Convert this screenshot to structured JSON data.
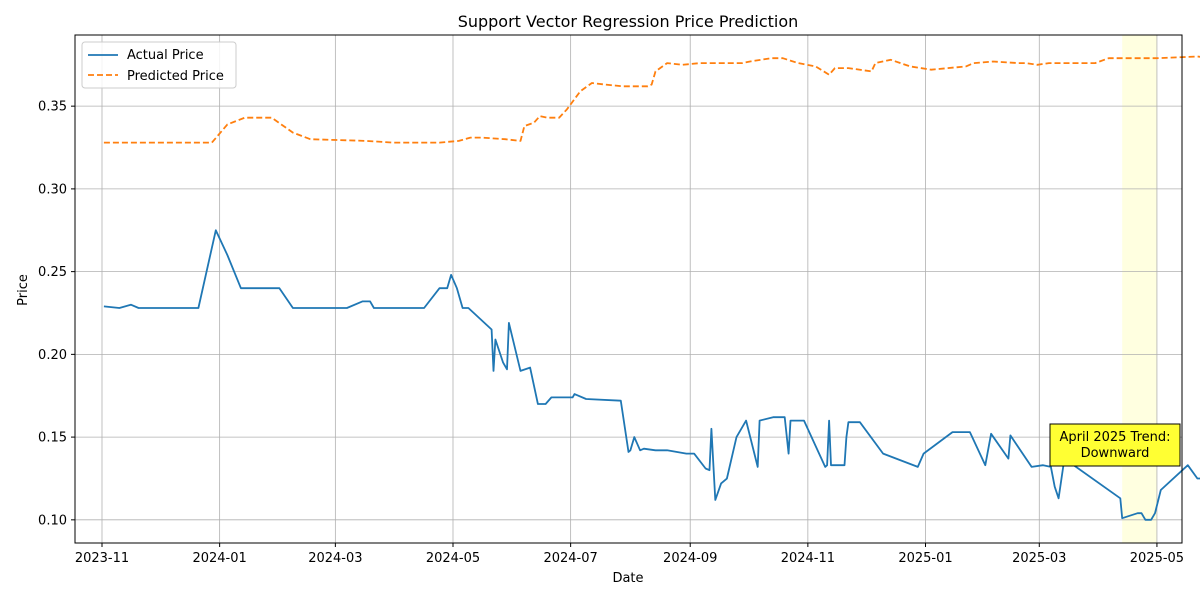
{
  "chart_data": {
    "type": "line",
    "title": "Support Vector Regression Price Prediction",
    "xlabel": "Date",
    "ylabel": "Price",
    "xlim": [
      "2023-10-18",
      "2025-05-14"
    ],
    "ylim": [
      0.086,
      0.393
    ],
    "grid": true,
    "legend_position": "top-left",
    "x_tick_labels": [
      "2023-11",
      "2024-01",
      "2024-03",
      "2024-05",
      "2024-07",
      "2024-09",
      "2024-11",
      "2025-01",
      "2025-03",
      "2025-05"
    ],
    "y_ticks": [
      0.1,
      0.15,
      0.2,
      0.25,
      0.3,
      0.35
    ],
    "y_tick_labels": [
      "0.10",
      "0.15",
      "0.20",
      "0.25",
      "0.30",
      "0.35"
    ],
    "highlight": {
      "start": "2025-04-13",
      "end": "2025-05-01",
      "color": "#ffffe0"
    },
    "annotation": {
      "lines": [
        "April 2025 Trend:",
        "Downward"
      ],
      "date": "2025-04-25",
      "price": 0.142,
      "box_color": "#ffff33"
    },
    "series": [
      {
        "name": "Actual Price",
        "color": "#1f77b4",
        "style": "solid",
        "points": [
          [
            "2023-11-02",
            0.229
          ],
          [
            "2023-11-10",
            0.228
          ],
          [
            "2023-11-16",
            0.23
          ],
          [
            "2023-11-20",
            0.228
          ],
          [
            "2023-12-21",
            0.228
          ],
          [
            "2023-12-30",
            0.275
          ],
          [
            "2024-01-05",
            0.26
          ],
          [
            "2024-01-12",
            0.24
          ],
          [
            "2024-02-01",
            0.24
          ],
          [
            "2024-02-08",
            0.228
          ],
          [
            "2024-03-07",
            0.228
          ],
          [
            "2024-03-15",
            0.232
          ],
          [
            "2024-03-19",
            0.232
          ],
          [
            "2024-03-21",
            0.228
          ],
          [
            "2024-04-16",
            0.228
          ],
          [
            "2024-04-24",
            0.24
          ],
          [
            "2024-04-28",
            0.24
          ],
          [
            "2024-04-30",
            0.248
          ],
          [
            "2024-05-03",
            0.24
          ],
          [
            "2024-05-06",
            0.228
          ],
          [
            "2024-05-09",
            0.228
          ],
          [
            "2024-05-21",
            0.215
          ],
          [
            "2024-05-22",
            0.19
          ],
          [
            "2024-05-23",
            0.209
          ],
          [
            "2024-05-27",
            0.195
          ],
          [
            "2024-05-29",
            0.191
          ],
          [
            "2024-05-30",
            0.219
          ],
          [
            "2024-06-05",
            0.19
          ],
          [
            "2024-06-10",
            0.192
          ],
          [
            "2024-06-14",
            0.17
          ],
          [
            "2024-06-18",
            0.17
          ],
          [
            "2024-06-21",
            0.174
          ],
          [
            "2024-07-02",
            0.174
          ],
          [
            "2024-07-03",
            0.176
          ],
          [
            "2024-07-09",
            0.173
          ],
          [
            "2024-07-27",
            0.172
          ],
          [
            "2024-07-31",
            0.141
          ],
          [
            "2024-08-01",
            0.142
          ],
          [
            "2024-08-03",
            0.15
          ],
          [
            "2024-08-06",
            0.142
          ],
          [
            "2024-08-08",
            0.143
          ],
          [
            "2024-08-14",
            0.142
          ],
          [
            "2024-08-20",
            0.142
          ],
          [
            "2024-08-30",
            0.14
          ],
          [
            "2024-09-03",
            0.14
          ],
          [
            "2024-09-09",
            0.131
          ],
          [
            "2024-09-11",
            0.13
          ],
          [
            "2024-09-12",
            0.155
          ],
          [
            "2024-09-14",
            0.112
          ],
          [
            "2024-09-17",
            0.122
          ],
          [
            "2024-09-20",
            0.125
          ],
          [
            "2024-09-25",
            0.15
          ],
          [
            "2024-09-30",
            0.16
          ],
          [
            "2024-10-06",
            0.132
          ],
          [
            "2024-10-07",
            0.16
          ],
          [
            "2024-10-14",
            0.162
          ],
          [
            "2024-10-20",
            0.162
          ],
          [
            "2024-10-22",
            0.14
          ],
          [
            "2024-10-23",
            0.16
          ],
          [
            "2024-10-30",
            0.16
          ],
          [
            "2024-11-10",
            0.132
          ],
          [
            "2024-11-11",
            0.133
          ],
          [
            "2024-11-12",
            0.16
          ],
          [
            "2024-11-13",
            0.133
          ],
          [
            "2024-11-20",
            0.133
          ],
          [
            "2024-11-21",
            0.15
          ],
          [
            "2024-11-22",
            0.159
          ],
          [
            "2024-11-28",
            0.159
          ],
          [
            "2024-12-10",
            0.14
          ],
          [
            "2024-12-28",
            0.132
          ],
          [
            "2024-12-31",
            0.14
          ],
          [
            "2025-01-15",
            0.153
          ],
          [
            "2025-01-24",
            0.153
          ],
          [
            "2025-02-01",
            0.133
          ],
          [
            "2025-02-04",
            0.152
          ],
          [
            "2025-02-13",
            0.137
          ],
          [
            "2025-02-14",
            0.151
          ],
          [
            "2025-02-25",
            0.132
          ],
          [
            "2025-03-03",
            0.133
          ],
          [
            "2025-03-07",
            0.132
          ],
          [
            "2025-03-09",
            0.12
          ],
          [
            "2025-03-11",
            0.113
          ],
          [
            "2025-03-14",
            0.137
          ],
          [
            "2025-04-12",
            0.113
          ],
          [
            "2025-04-13",
            0.101
          ],
          [
            "2025-04-21",
            0.104
          ],
          [
            "2025-04-23",
            0.104
          ],
          [
            "2025-04-25",
            0.1
          ],
          [
            "2025-04-28",
            0.1
          ],
          [
            "2025-04-30",
            0.104
          ],
          [
            "2025-05-03",
            0.118
          ],
          [
            "2025-05-17",
            0.133
          ],
          [
            "2025-05-22",
            0.125
          ],
          [
            "2025-06-06",
            0.125
          ]
        ]
      },
      {
        "name": "Predicted Price",
        "color": "#ff7f0e",
        "style": "dashed",
        "points": [
          [
            "2023-11-02",
            0.328
          ],
          [
            "2023-12-28",
            0.328
          ],
          [
            "2024-01-05",
            0.339
          ],
          [
            "2024-01-14",
            0.343
          ],
          [
            "2024-01-28",
            0.343
          ],
          [
            "2024-02-08",
            0.334
          ],
          [
            "2024-02-17",
            0.33
          ],
          [
            "2024-03-17",
            0.329
          ],
          [
            "2024-03-31",
            0.328
          ],
          [
            "2024-04-24",
            0.328
          ],
          [
            "2024-05-04",
            0.329
          ],
          [
            "2024-05-10",
            0.331
          ],
          [
            "2024-05-16",
            0.331
          ],
          [
            "2024-05-28",
            0.33
          ],
          [
            "2024-06-05",
            0.329
          ],
          [
            "2024-06-07",
            0.338
          ],
          [
            "2024-06-12",
            0.34
          ],
          [
            "2024-06-15",
            0.344
          ],
          [
            "2024-06-19",
            0.343
          ],
          [
            "2024-06-25",
            0.343
          ],
          [
            "2024-06-29",
            0.348
          ],
          [
            "2024-07-06",
            0.359
          ],
          [
            "2024-07-12",
            0.364
          ],
          [
            "2024-07-19",
            0.363
          ],
          [
            "2024-07-28",
            0.362
          ],
          [
            "2024-08-10",
            0.362
          ],
          [
            "2024-08-12",
            0.363
          ],
          [
            "2024-08-14",
            0.371
          ],
          [
            "2024-08-20",
            0.376
          ],
          [
            "2024-08-28",
            0.375
          ],
          [
            "2024-09-06",
            0.376
          ],
          [
            "2024-09-28",
            0.376
          ],
          [
            "2024-10-02",
            0.377
          ],
          [
            "2024-10-13",
            0.379
          ],
          [
            "2024-10-19",
            0.379
          ],
          [
            "2024-10-27",
            0.376
          ],
          [
            "2024-11-05",
            0.374
          ],
          [
            "2024-11-12",
            0.369
          ],
          [
            "2024-11-15",
            0.373
          ],
          [
            "2024-11-22",
            0.373
          ],
          [
            "2024-12-04",
            0.371
          ],
          [
            "2024-12-06",
            0.376
          ],
          [
            "2024-12-14",
            0.378
          ],
          [
            "2024-12-24",
            0.374
          ],
          [
            "2025-01-04",
            0.372
          ],
          [
            "2025-01-22",
            0.374
          ],
          [
            "2025-01-26",
            0.376
          ],
          [
            "2025-02-05",
            0.377
          ],
          [
            "2025-02-18",
            0.376
          ],
          [
            "2025-02-22",
            0.376
          ],
          [
            "2025-02-28",
            0.375
          ],
          [
            "2025-03-06",
            0.376
          ],
          [
            "2025-03-17",
            0.376
          ],
          [
            "2025-03-30",
            0.376
          ],
          [
            "2025-04-06",
            0.379
          ],
          [
            "2025-04-22",
            0.379
          ],
          [
            "2025-05-01",
            0.379
          ],
          [
            "2025-05-22",
            0.38
          ],
          [
            "2025-06-06",
            0.378
          ]
        ]
      }
    ]
  }
}
